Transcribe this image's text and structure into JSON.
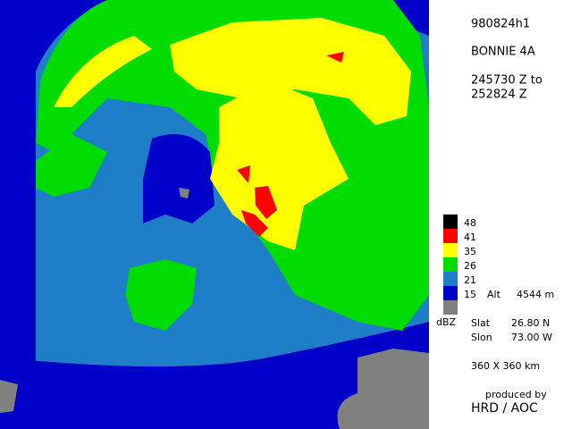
{
  "header": {
    "id": "980824h1",
    "storm": "BONNIE 4A",
    "time_from": "245730 Z to",
    "time_to": "252824 Z"
  },
  "legend": {
    "items": [
      {
        "label": "48",
        "color": "#000000"
      },
      {
        "label": "41",
        "color": "#ff0000"
      },
      {
        "label": "35",
        "color": "#ffff00"
      },
      {
        "label": "26",
        "color": "#00dc00"
      },
      {
        "label": "21",
        "color": "#1e7fc8"
      },
      {
        "label": "15",
        "color": "#0000c8"
      },
      {
        "label": null,
        "color": "#808080"
      }
    ],
    "unit": "dBZ"
  },
  "altitude": {
    "label": "Alt",
    "value": "4544 m"
  },
  "position": {
    "slat_label": "Slat",
    "slat": "26.80 N",
    "slon_label": "Slon",
    "slon": "73.00 W"
  },
  "domain_size": "360 X 360 km",
  "credit": {
    "line1": "produced by",
    "line2": "HRD / AOC"
  }
}
